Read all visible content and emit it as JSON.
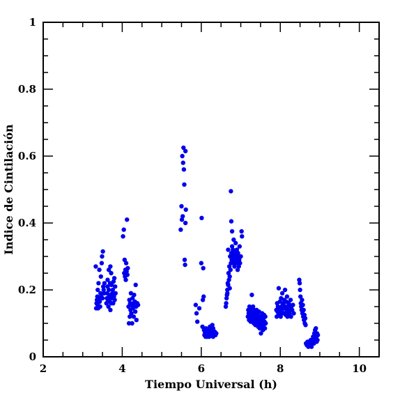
{
  "chart_data": {
    "type": "scatter",
    "title": "",
    "xlabel": "Tiempo Universal (h)",
    "ylabel": "Indice de Cintilación",
    "xlim": [
      2,
      10.5
    ],
    "ylim": [
      0,
      1
    ],
    "xticks": [
      2,
      4,
      6,
      8,
      10
    ],
    "xtick_labels": [
      "2",
      "4",
      "6",
      "8",
      "10"
    ],
    "yticks": [
      0,
      0.2,
      0.4,
      0.6,
      0.8,
      1
    ],
    "ytick_labels": [
      "0",
      "0.2",
      "0.4",
      "0.6",
      "0.8",
      "1"
    ],
    "grid": false,
    "legend": "none",
    "marker_color": "#0000ee",
    "series": [
      {
        "points": [
          [
            3.33,
            0.27
          ],
          [
            3.34,
            0.145
          ],
          [
            3.35,
            0.16
          ],
          [
            3.36,
            0.17
          ],
          [
            3.37,
            0.18
          ],
          [
            3.38,
            0.2
          ],
          [
            3.38,
            0.155
          ],
          [
            3.39,
            0.145
          ],
          [
            3.4,
            0.22
          ],
          [
            3.41,
            0.175
          ],
          [
            3.42,
            0.26
          ],
          [
            3.43,
            0.165
          ],
          [
            3.44,
            0.15
          ],
          [
            3.45,
            0.19
          ],
          [
            3.46,
            0.24
          ],
          [
            3.47,
            0.18
          ],
          [
            3.48,
            0.28
          ],
          [
            3.49,
            0.3
          ],
          [
            3.5,
            0.175
          ],
          [
            3.51,
            0.315
          ],
          [
            3.52,
            0.21
          ],
          [
            3.53,
            0.2
          ],
          [
            3.54,
            0.19
          ],
          [
            3.55,
            0.22
          ],
          [
            3.6,
            0.16
          ],
          [
            3.61,
            0.175
          ],
          [
            3.62,
            0.19
          ],
          [
            3.63,
            0.21
          ],
          [
            3.64,
            0.17
          ],
          [
            3.65,
            0.15
          ],
          [
            3.66,
            0.2
          ],
          [
            3.67,
            0.18
          ],
          [
            3.68,
            0.165
          ],
          [
            3.69,
            0.22
          ],
          [
            3.7,
            0.14
          ],
          [
            3.71,
            0.185
          ],
          [
            3.72,
            0.25
          ],
          [
            3.72,
            0.16
          ],
          [
            3.73,
            0.215
          ],
          [
            3.74,
            0.175
          ],
          [
            3.75,
            0.19
          ],
          [
            3.76,
            0.2
          ],
          [
            3.77,
            0.16
          ],
          [
            3.78,
            0.225
          ],
          [
            3.79,
            0.18
          ],
          [
            3.8,
            0.235
          ],
          [
            3.81,
            0.17
          ],
          [
            3.82,
            0.21
          ],
          [
            3.83,
            0.19
          ],
          [
            3.66,
            0.26
          ],
          [
            3.7,
            0.27
          ],
          [
            3.63,
            0.23
          ],
          [
            4.02,
            0.36
          ],
          [
            4.04,
            0.38
          ],
          [
            4.05,
            0.25
          ],
          [
            4.06,
            0.29
          ],
          [
            4.07,
            0.24
          ],
          [
            4.08,
            0.26
          ],
          [
            4.09,
            0.23
          ],
          [
            4.1,
            0.28
          ],
          [
            4.11,
            0.255
          ],
          [
            4.12,
            0.41
          ],
          [
            4.13,
            0.245
          ],
          [
            4.14,
            0.265
          ],
          [
            4.16,
            0.15
          ],
          [
            4.17,
            0.1
          ],
          [
            4.18,
            0.17
          ],
          [
            4.19,
            0.12
          ],
          [
            4.2,
            0.16
          ],
          [
            4.21,
            0.14
          ],
          [
            4.22,
            0.19
          ],
          [
            4.23,
            0.13
          ],
          [
            4.24,
            0.155
          ],
          [
            4.25,
            0.1
          ],
          [
            4.26,
            0.175
          ],
          [
            4.27,
            0.145
          ],
          [
            4.28,
            0.16
          ],
          [
            4.29,
            0.12
          ],
          [
            4.3,
            0.185
          ],
          [
            4.31,
            0.15
          ],
          [
            4.32,
            0.165
          ],
          [
            4.33,
            0.135
          ],
          [
            4.34,
            0.215
          ],
          [
            4.35,
            0.15
          ],
          [
            4.36,
            0.11
          ],
          [
            4.38,
            0.16
          ],
          [
            4.4,
            0.155
          ],
          [
            5.48,
            0.38
          ],
          [
            5.5,
            0.45
          ],
          [
            5.51,
            0.41
          ],
          [
            5.52,
            0.6
          ],
          [
            5.53,
            0.42
          ],
          [
            5.54,
            0.58
          ],
          [
            5.55,
            0.625
          ],
          [
            5.56,
            0.56
          ],
          [
            5.57,
            0.515
          ],
          [
            5.58,
            0.29
          ],
          [
            5.59,
            0.275
          ],
          [
            5.6,
            0.4
          ],
          [
            5.61,
            0.44
          ],
          [
            5.6,
            0.615
          ],
          [
            5.86,
            0.155
          ],
          [
            5.88,
            0.13
          ],
          [
            5.9,
            0.105
          ],
          [
            5.95,
            0.145
          ],
          [
            6.0,
            0.28
          ],
          [
            6.01,
            0.415
          ],
          [
            6.03,
            0.09
          ],
          [
            6.04,
            0.17
          ],
          [
            6.05,
            0.265
          ],
          [
            6.06,
            0.18
          ],
          [
            6.07,
            0.08
          ],
          [
            6.08,
            0.065
          ],
          [
            6.09,
            0.075
          ],
          [
            6.1,
            0.07
          ],
          [
            6.11,
            0.06
          ],
          [
            6.12,
            0.085
          ],
          [
            6.13,
            0.065
          ],
          [
            6.14,
            0.07
          ],
          [
            6.15,
            0.06
          ],
          [
            6.16,
            0.08
          ],
          [
            6.18,
            0.065
          ],
          [
            6.2,
            0.075
          ],
          [
            6.22,
            0.09
          ],
          [
            6.24,
            0.065
          ],
          [
            6.25,
            0.08
          ],
          [
            6.26,
            0.07
          ],
          [
            6.28,
            0.095
          ],
          [
            6.3,
            0.085
          ],
          [
            6.32,
            0.07
          ],
          [
            6.34,
            0.075
          ],
          [
            6.36,
            0.065
          ],
          [
            6.38,
            0.07
          ],
          [
            6.2,
            0.06
          ],
          [
            6.3,
            0.06
          ],
          [
            6.62,
            0.15
          ],
          [
            6.63,
            0.16
          ],
          [
            6.64,
            0.175
          ],
          [
            6.65,
            0.185
          ],
          [
            6.66,
            0.2
          ],
          [
            6.67,
            0.22
          ],
          [
            6.68,
            0.215
          ],
          [
            6.69,
            0.25
          ],
          [
            6.7,
            0.23
          ],
          [
            6.71,
            0.27
          ],
          [
            6.72,
            0.24
          ],
          [
            6.73,
            0.3
          ],
          [
            6.74,
            0.26
          ],
          [
            6.75,
            0.28
          ],
          [
            6.76,
            0.31
          ],
          [
            6.77,
            0.29
          ],
          [
            6.78,
            0.33
          ],
          [
            6.79,
            0.3
          ],
          [
            6.8,
            0.32
          ],
          [
            6.81,
            0.28
          ],
          [
            6.82,
            0.35
          ],
          [
            6.83,
            0.3
          ],
          [
            6.84,
            0.27
          ],
          [
            6.85,
            0.31
          ],
          [
            6.86,
            0.29
          ],
          [
            6.87,
            0.34
          ],
          [
            6.88,
            0.3
          ],
          [
            6.89,
            0.28
          ],
          [
            6.9,
            0.32
          ],
          [
            6.91,
            0.29
          ],
          [
            6.92,
            0.26
          ],
          [
            6.93,
            0.31
          ],
          [
            6.94,
            0.3
          ],
          [
            6.95,
            0.27
          ],
          [
            6.96,
            0.29
          ],
          [
            6.97,
            0.33
          ],
          [
            6.98,
            0.28
          ],
          [
            7.0,
            0.3
          ],
          [
            7.02,
            0.375
          ],
          [
            7.03,
            0.36
          ],
          [
            6.75,
            0.495
          ],
          [
            6.76,
            0.405
          ],
          [
            6.78,
            0.375
          ],
          [
            6.68,
            0.32
          ],
          [
            6.72,
            0.205
          ],
          [
            6.66,
            0.19
          ],
          [
            7.18,
            0.12
          ],
          [
            7.19,
            0.14
          ],
          [
            7.2,
            0.13
          ],
          [
            7.21,
            0.11
          ],
          [
            7.22,
            0.15
          ],
          [
            7.23,
            0.125
          ],
          [
            7.24,
            0.135
          ],
          [
            7.25,
            0.105
          ],
          [
            7.26,
            0.145
          ],
          [
            7.27,
            0.12
          ],
          [
            7.28,
            0.185
          ],
          [
            7.29,
            0.13
          ],
          [
            7.3,
            0.115
          ],
          [
            7.31,
            0.15
          ],
          [
            7.32,
            0.125
          ],
          [
            7.33,
            0.1
          ],
          [
            7.34,
            0.14
          ],
          [
            7.35,
            0.11
          ],
          [
            7.36,
            0.13
          ],
          [
            7.37,
            0.095
          ],
          [
            7.38,
            0.12
          ],
          [
            7.39,
            0.105
          ],
          [
            7.4,
            0.14
          ],
          [
            7.41,
            0.115
          ],
          [
            7.42,
            0.1
          ],
          [
            7.43,
            0.125
          ],
          [
            7.44,
            0.09
          ],
          [
            7.45,
            0.11
          ],
          [
            7.46,
            0.135
          ],
          [
            7.47,
            0.1
          ],
          [
            7.48,
            0.085
          ],
          [
            7.49,
            0.12
          ],
          [
            7.5,
            0.095
          ],
          [
            7.51,
            0.07
          ],
          [
            7.52,
            0.11
          ],
          [
            7.53,
            0.09
          ],
          [
            7.54,
            0.13
          ],
          [
            7.55,
            0.1
          ],
          [
            7.56,
            0.08
          ],
          [
            7.57,
            0.115
          ],
          [
            7.58,
            0.095
          ],
          [
            7.59,
            0.125
          ],
          [
            7.6,
            0.105
          ],
          [
            7.61,
            0.085
          ],
          [
            7.62,
            0.12
          ],
          [
            7.63,
            0.1
          ],
          [
            7.9,
            0.14
          ],
          [
            7.91,
            0.12
          ],
          [
            7.92,
            0.16
          ],
          [
            7.93,
            0.135
          ],
          [
            7.94,
            0.15
          ],
          [
            7.95,
            0.125
          ],
          [
            7.96,
            0.205
          ],
          [
            7.97,
            0.145
          ],
          [
            7.98,
            0.13
          ],
          [
            7.99,
            0.165
          ],
          [
            8.0,
            0.14
          ],
          [
            8.01,
            0.12
          ],
          [
            8.02,
            0.175
          ],
          [
            8.03,
            0.15
          ],
          [
            8.04,
            0.135
          ],
          [
            8.05,
            0.19
          ],
          [
            8.06,
            0.155
          ],
          [
            8.07,
            0.13
          ],
          [
            8.08,
            0.16
          ],
          [
            8.09,
            0.145
          ],
          [
            8.1,
            0.17
          ],
          [
            8.11,
            0.13
          ],
          [
            8.12,
            0.2
          ],
          [
            8.13,
            0.15
          ],
          [
            8.14,
            0.125
          ],
          [
            8.15,
            0.165
          ],
          [
            8.16,
            0.14
          ],
          [
            8.17,
            0.18
          ],
          [
            8.18,
            0.12
          ],
          [
            8.19,
            0.15
          ],
          [
            8.2,
            0.135
          ],
          [
            8.21,
            0.16
          ],
          [
            8.22,
            0.145
          ],
          [
            8.23,
            0.13
          ],
          [
            8.24,
            0.155
          ],
          [
            8.25,
            0.14
          ],
          [
            8.26,
            0.17
          ],
          [
            8.27,
            0.12
          ],
          [
            8.28,
            0.15
          ],
          [
            8.3,
            0.14
          ],
          [
            8.32,
            0.155
          ],
          [
            8.34,
            0.13
          ],
          [
            8.48,
            0.23
          ],
          [
            8.49,
            0.22
          ],
          [
            8.5,
            0.2
          ],
          [
            8.51,
            0.18
          ],
          [
            8.52,
            0.16
          ],
          [
            8.53,
            0.15
          ],
          [
            8.54,
            0.14
          ],
          [
            8.55,
            0.17
          ],
          [
            8.56,
            0.13
          ],
          [
            8.57,
            0.155
          ],
          [
            8.58,
            0.12
          ],
          [
            8.59,
            0.14
          ],
          [
            8.6,
            0.11
          ],
          [
            8.61,
            0.125
          ],
          [
            8.62,
            0.1
          ],
          [
            8.63,
            0.115
          ],
          [
            8.64,
            0.095
          ],
          [
            8.65,
            0.04
          ],
          [
            8.67,
            0.035
          ],
          [
            8.69,
            0.045
          ],
          [
            8.71,
            0.03
          ],
          [
            8.73,
            0.04
          ],
          [
            8.75,
            0.035
          ],
          [
            8.77,
            0.05
          ],
          [
            8.79,
            0.03
          ],
          [
            8.81,
            0.045
          ],
          [
            8.83,
            0.06
          ],
          [
            8.85,
            0.04
          ],
          [
            8.86,
            0.07
          ],
          [
            8.87,
            0.055
          ],
          [
            8.88,
            0.08
          ],
          [
            8.89,
            0.05
          ],
          [
            8.9,
            0.085
          ],
          [
            8.91,
            0.06
          ],
          [
            8.92,
            0.045
          ],
          [
            8.93,
            0.07
          ],
          [
            8.94,
            0.05
          ],
          [
            8.95,
            0.065
          ]
        ]
      }
    ]
  }
}
